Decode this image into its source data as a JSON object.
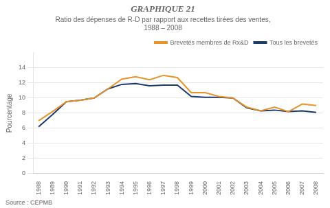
{
  "chart_data": {
    "type": "line",
    "title": "GRAPHIQUE 21",
    "subtitle": [
      "Ratio des dépenses de R-D par rapport aux recettes tirées des ventes,",
      "1988 – 2008"
    ],
    "y_label": "Pourcentage",
    "annotations": [
      "Source : CEPMB"
    ],
    "x": [
      1988,
      1989,
      1990,
      1991,
      1992,
      1993,
      1994,
      1995,
      1996,
      1997,
      1998,
      1999,
      2000,
      2001,
      2002,
      2003,
      2004,
      2005,
      2006,
      2007,
      2008
    ],
    "series": [
      {
        "name": "Brevetés membres de Rx&D",
        "color": "#E8922A",
        "values": [
          7.0,
          8.2,
          9.5,
          9.7,
          10.0,
          11.2,
          12.5,
          12.8,
          12.4,
          13.0,
          12.7,
          10.7,
          10.7,
          10.2,
          10.0,
          8.8,
          8.3,
          8.8,
          8.2,
          9.2,
          9.0
        ]
      },
      {
        "name": "Tous les brevetés",
        "color": "#1B3A6B",
        "values": [
          6.2,
          7.8,
          9.5,
          9.7,
          10.0,
          11.2,
          11.8,
          11.9,
          11.6,
          11.7,
          11.7,
          10.2,
          10.1,
          10.1,
          10.0,
          8.7,
          8.3,
          8.4,
          8.2,
          8.3,
          8.1
        ]
      }
    ],
    "xlim": [
      1987.6,
      2008.5
    ],
    "xticks": [
      1988,
      1989,
      1990,
      1991,
      1992,
      1993,
      1994,
      1995,
      1996,
      1997,
      1998,
      1999,
      2000,
      2001,
      2002,
      2003,
      2004,
      2005,
      2006,
      2007,
      2008
    ],
    "ylim": [
      0,
      16
    ],
    "yticks": [
      0,
      2,
      4,
      6,
      8,
      10,
      12,
      14
    ],
    "grid": "y",
    "legend": "upper right"
  }
}
